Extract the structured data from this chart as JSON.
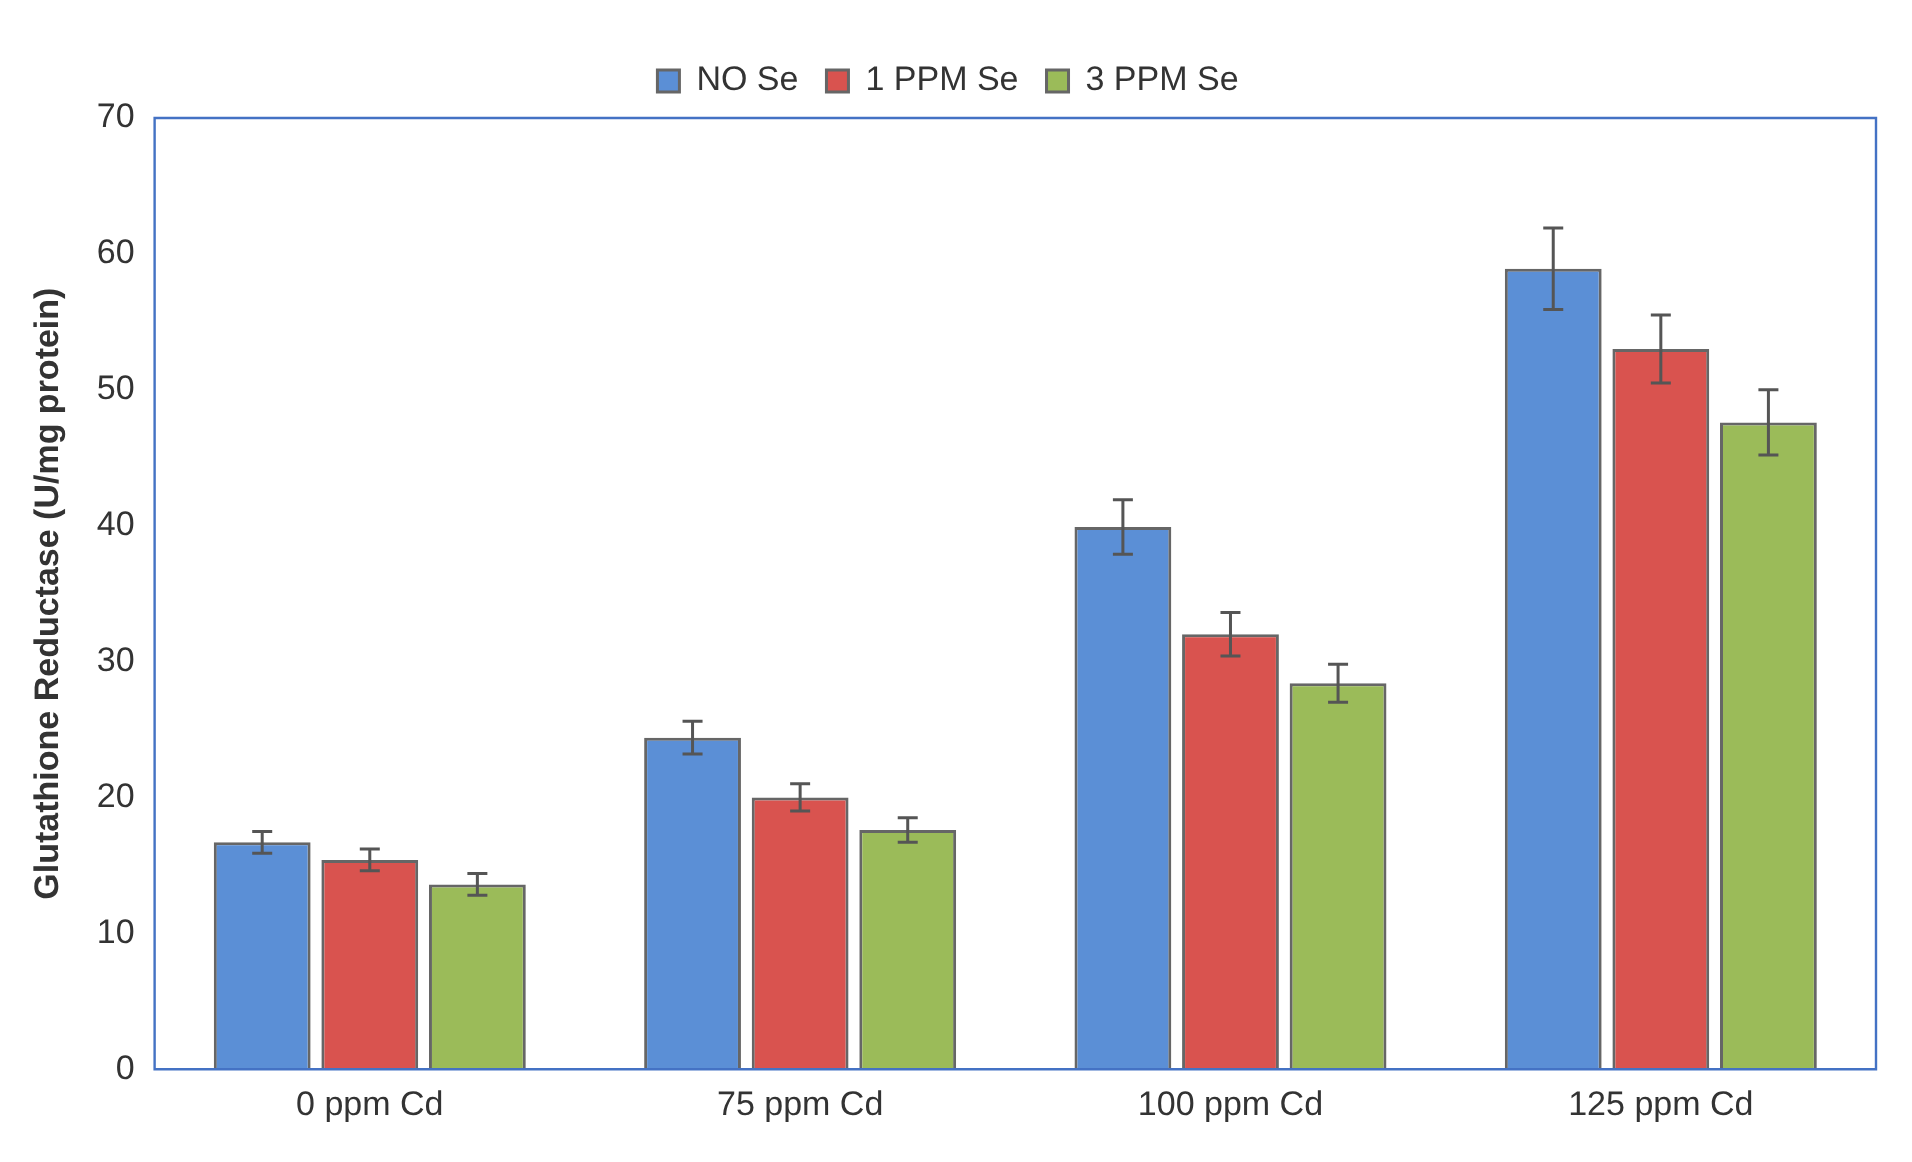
{
  "chart_data": {
    "type": "bar",
    "ylabel": "Glutathione Reductase (U/mg protein)",
    "categories": [
      "0 ppm Cd",
      "75 ppm Cd",
      "100 ppm Cd",
      "125 ppm Cd"
    ],
    "series": [
      {
        "name": "NO Se",
        "color": "#5b8fd6",
        "values": [
          16.7,
          24.4,
          39.9,
          58.9
        ],
        "errors": [
          0.8,
          1.2,
          2,
          3
        ]
      },
      {
        "name": "1 PPM Se",
        "color": "#d9534f",
        "values": [
          15.4,
          20,
          32,
          53
        ],
        "errors": [
          0.8,
          1,
          1.6,
          2.5
        ]
      },
      {
        "name": "3 PPM Se",
        "color": "#9bbb59",
        "values": [
          13.6,
          17.6,
          28.4,
          47.6
        ],
        "errors": [
          0.8,
          0.9,
          1.4,
          2.4
        ]
      }
    ],
    "ylim": [
      0,
      70
    ],
    "yticks": [
      0,
      10,
      20,
      30,
      40,
      50,
      60,
      70
    ],
    "grid": false,
    "legend": "top"
  }
}
